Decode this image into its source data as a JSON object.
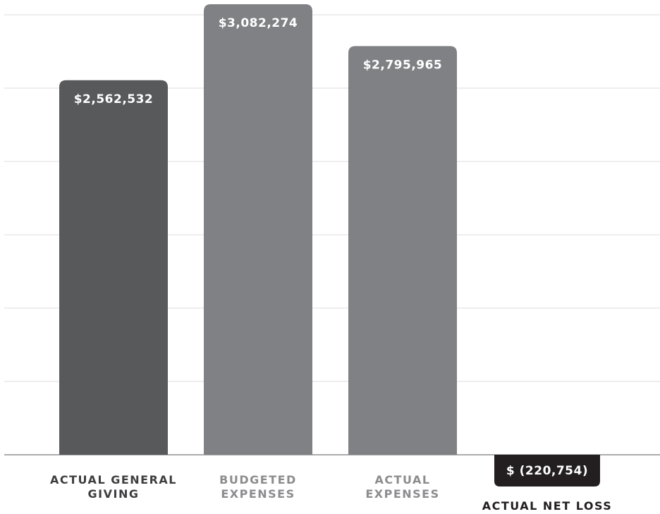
{
  "chart_data": {
    "type": "bar",
    "categories": [
      [
        "ACTUAL GENERAL",
        "GIVING"
      ],
      [
        "BUDGETED",
        "EXPENSES"
      ],
      [
        "ACTUAL",
        "EXPENSES"
      ],
      [
        "ACTUAL NET LOSS"
      ]
    ],
    "values": [
      2562532,
      3082274,
      2795965,
      -220754
    ],
    "value_labels": [
      "$2,562,532",
      "$3,082,274",
      "$2,795,965",
      "$ (220,754)"
    ],
    "colors": {
      "bars": [
        "#58595b",
        "#808184",
        "#808184",
        "#231f20"
      ],
      "category_labels": [
        "#3e3e40",
        "#8c8c8f",
        "#8c8c8f",
        "#231f20"
      ],
      "value_text": "#ffffff",
      "grid": "#dcdcdc",
      "baseline": "#7a7a7a"
    },
    "ylim": [
      0,
      3082274
    ],
    "grid": true,
    "title": "",
    "xlabel": "",
    "ylabel": ""
  }
}
